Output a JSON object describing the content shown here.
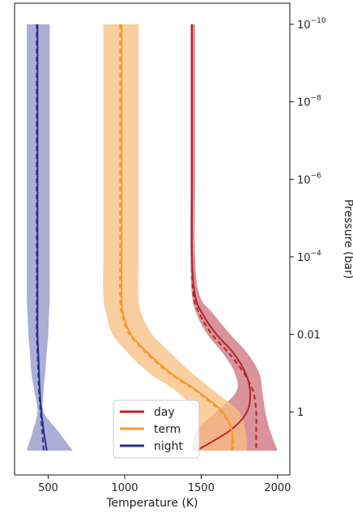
{
  "chart_data": {
    "type": "line",
    "title": "",
    "xlabel": "Temperature (K)",
    "ylabel": "Pressure (bar)",
    "x_scale": "linear",
    "y_scale": "log",
    "y_inverted": true,
    "y_right_axis": true,
    "xlim": [
      280,
      2080
    ],
    "ylim": [
      1e-10,
      10
    ],
    "x_ticks": [
      500,
      1000,
      1500,
      2000
    ],
    "x_tick_labels": [
      "500",
      "1000",
      "1500",
      "2000"
    ],
    "y_ticks": [
      1e-10,
      1e-08,
      1e-06,
      0.0001,
      0.01,
      1
    ],
    "y_tick_labels": [
      {
        "base": "10",
        "exp": "−10"
      },
      {
        "base": "10",
        "exp": "−8"
      },
      {
        "base": "10",
        "exp": "−6"
      },
      {
        "base": "10",
        "exp": "−4"
      },
      {
        "base": "0.01",
        "exp": ""
      },
      {
        "base": "1",
        "exp": ""
      }
    ],
    "legend": {
      "placement": "lower-center",
      "frame": true
    },
    "grid": false,
    "series": [
      {
        "name": "day",
        "color": "#b2262e",
        "band_color": "#cd6f7a",
        "pressure": [
          1e-10,
          1e-08,
          1e-06,
          0.0001,
          0.001,
          0.003,
          0.01,
          0.03,
          0.1,
          0.3,
          1,
          3,
          10
        ],
        "mean": [
          1440,
          1440,
          1440,
          1440,
          1460,
          1510,
          1600,
          1710,
          1790,
          1820,
          1800,
          1690,
          1470
        ],
        "dashed": [
          1440,
          1440,
          1440,
          1440,
          1450,
          1490,
          1570,
          1680,
          1780,
          1840,
          1860,
          1860,
          1860
        ],
        "band_low": [
          1430,
          1430,
          1430,
          1430,
          1440,
          1470,
          1540,
          1640,
          1720,
          1730,
          1600,
          1470,
          1440
        ],
        "band_high": [
          1460,
          1460,
          1460,
          1460,
          1490,
          1580,
          1690,
          1800,
          1880,
          1900,
          1920,
          1950,
          2000
        ]
      },
      {
        "name": "term",
        "color": "#f39a2e",
        "band_color": "#f7bf7f",
        "pressure": [
          1e-10,
          1e-08,
          1e-06,
          0.0001,
          0.001,
          0.003,
          0.01,
          0.03,
          0.1,
          0.3,
          1,
          3,
          10
        ],
        "mean": [
          980,
          980,
          980,
          980,
          980,
          990,
          1040,
          1150,
          1300,
          1480,
          1640,
          1700,
          1700
        ],
        "dashed": [
          970,
          970,
          970,
          970,
          970,
          980,
          1030,
          1140,
          1290,
          1470,
          1630,
          1700,
          1710
        ],
        "band_low": [
          860,
          860,
          860,
          860,
          860,
          880,
          920,
          1020,
          1160,
          1340,
          1470,
          1470,
          1470
        ],
        "band_high": [
          1090,
          1090,
          1090,
          1090,
          1090,
          1110,
          1180,
          1300,
          1440,
          1590,
          1750,
          1790,
          1800
        ]
      },
      {
        "name": "night",
        "color": "#2b2f8c",
        "band_color": "#8f93c8",
        "pressure": [
          1e-10,
          1e-08,
          1e-06,
          0.0001,
          0.001,
          0.003,
          0.01,
          0.03,
          0.1,
          0.3,
          1,
          3,
          10
        ],
        "mean": [
          430,
          430,
          430,
          430,
          430,
          430,
          430,
          435,
          440,
          445,
          455,
          470,
          490
        ],
        "dashed": [
          425,
          425,
          425,
          425,
          425,
          425,
          425,
          430,
          435,
          440,
          450,
          460,
          470
        ],
        "band_low": [
          360,
          360,
          360,
          360,
          360,
          365,
          370,
          380,
          390,
          410,
          430,
          400,
          360
        ],
        "band_high": [
          510,
          510,
          510,
          510,
          510,
          505,
          500,
          490,
          480,
          470,
          470,
          560,
          660
        ]
      }
    ]
  }
}
